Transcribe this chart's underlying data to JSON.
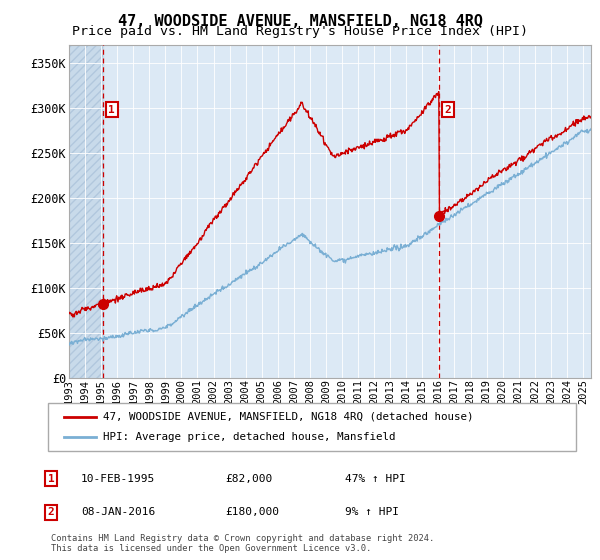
{
  "title": "47, WOODSIDE AVENUE, MANSFIELD, NG18 4RQ",
  "subtitle": "Price paid vs. HM Land Registry's House Price Index (HPI)",
  "ylim": [
    0,
    370000
  ],
  "yticks": [
    0,
    50000,
    100000,
    150000,
    200000,
    250000,
    300000,
    350000
  ],
  "ytick_labels": [
    "£0",
    "£50K",
    "£100K",
    "£150K",
    "£200K",
    "£250K",
    "£300K",
    "£350K"
  ],
  "background_color": "#ffffff",
  "plot_bg_color": "#dce9f5",
  "grid_color": "#ffffff",
  "title_fontsize": 11,
  "subtitle_fontsize": 9.5,
  "legend_label_red": "47, WOODSIDE AVENUE, MANSFIELD, NG18 4RQ (detached house)",
  "legend_label_blue": "HPI: Average price, detached house, Mansfield",
  "sale1_date": "10-FEB-1995",
  "sale1_price": "£82,000",
  "sale1_hpi": "47% ↑ HPI",
  "sale1_year": 1995.1,
  "sale1_price_val": 82000,
  "sale2_date": "08-JAN-2016",
  "sale2_price": "£180,000",
  "sale2_hpi": "9% ↑ HPI",
  "sale2_year": 2016.04,
  "sale2_price_val": 180000,
  "footnote": "Contains HM Land Registry data © Crown copyright and database right 2024.\nThis data is licensed under the Open Government Licence v3.0.",
  "red_color": "#cc0000",
  "blue_color": "#7aafd4",
  "xmin": 1993,
  "xmax": 2025.5
}
